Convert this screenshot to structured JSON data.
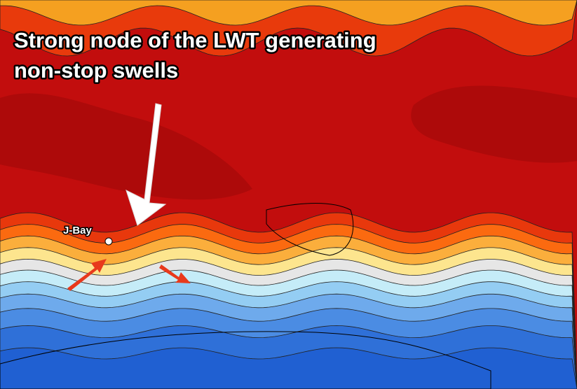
{
  "annotation": {
    "lines": [
      "Strong node of the LWT generating",
      "non-stop swells"
    ]
  },
  "label": "J-Bay"
}
